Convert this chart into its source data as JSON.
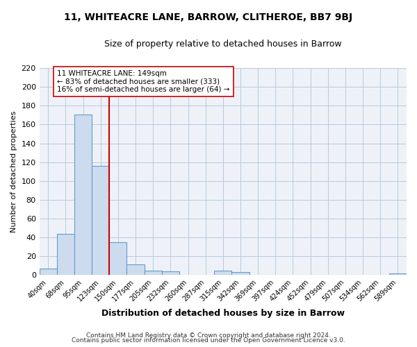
{
  "title": "11, WHITEACRE LANE, BARROW, CLITHEROE, BB7 9BJ",
  "subtitle": "Size of property relative to detached houses in Barrow",
  "xlabel": "Distribution of detached houses by size in Barrow",
  "ylabel": "Number of detached properties",
  "bar_labels": [
    "40sqm",
    "68sqm",
    "95sqm",
    "123sqm",
    "150sqm",
    "177sqm",
    "205sqm",
    "232sqm",
    "260sqm",
    "287sqm",
    "315sqm",
    "342sqm",
    "369sqm",
    "397sqm",
    "424sqm",
    "452sqm",
    "479sqm",
    "507sqm",
    "534sqm",
    "562sqm",
    "589sqm"
  ],
  "bar_values": [
    7,
    44,
    171,
    116,
    35,
    11,
    5,
    4,
    0,
    0,
    5,
    3,
    0,
    0,
    0,
    0,
    0,
    0,
    0,
    0,
    2
  ],
  "bar_color": "#ccdcee",
  "bar_edge_color": "#6699cc",
  "property_line_color": "#cc0000",
  "annotation_title": "11 WHITEACRE LANE: 149sqm",
  "annotation_line1": "← 83% of detached houses are smaller (333)",
  "annotation_line2": "16% of semi-detached houses are larger (64) →",
  "annotation_box_edge_color": "#cc0000",
  "annotation_box_face_color": "#ffffff",
  "ylim": [
    0,
    220
  ],
  "yticks": [
    0,
    20,
    40,
    60,
    80,
    100,
    120,
    140,
    160,
    180,
    200,
    220
  ],
  "footer1": "Contains HM Land Registry data © Crown copyright and database right 2024.",
  "footer2": "Contains public sector information licensed under the Open Government Licence v3.0.",
  "bg_color": "#ffffff",
  "plot_bg_color": "#eef2f8",
  "grid_color": "#b8c8dc"
}
